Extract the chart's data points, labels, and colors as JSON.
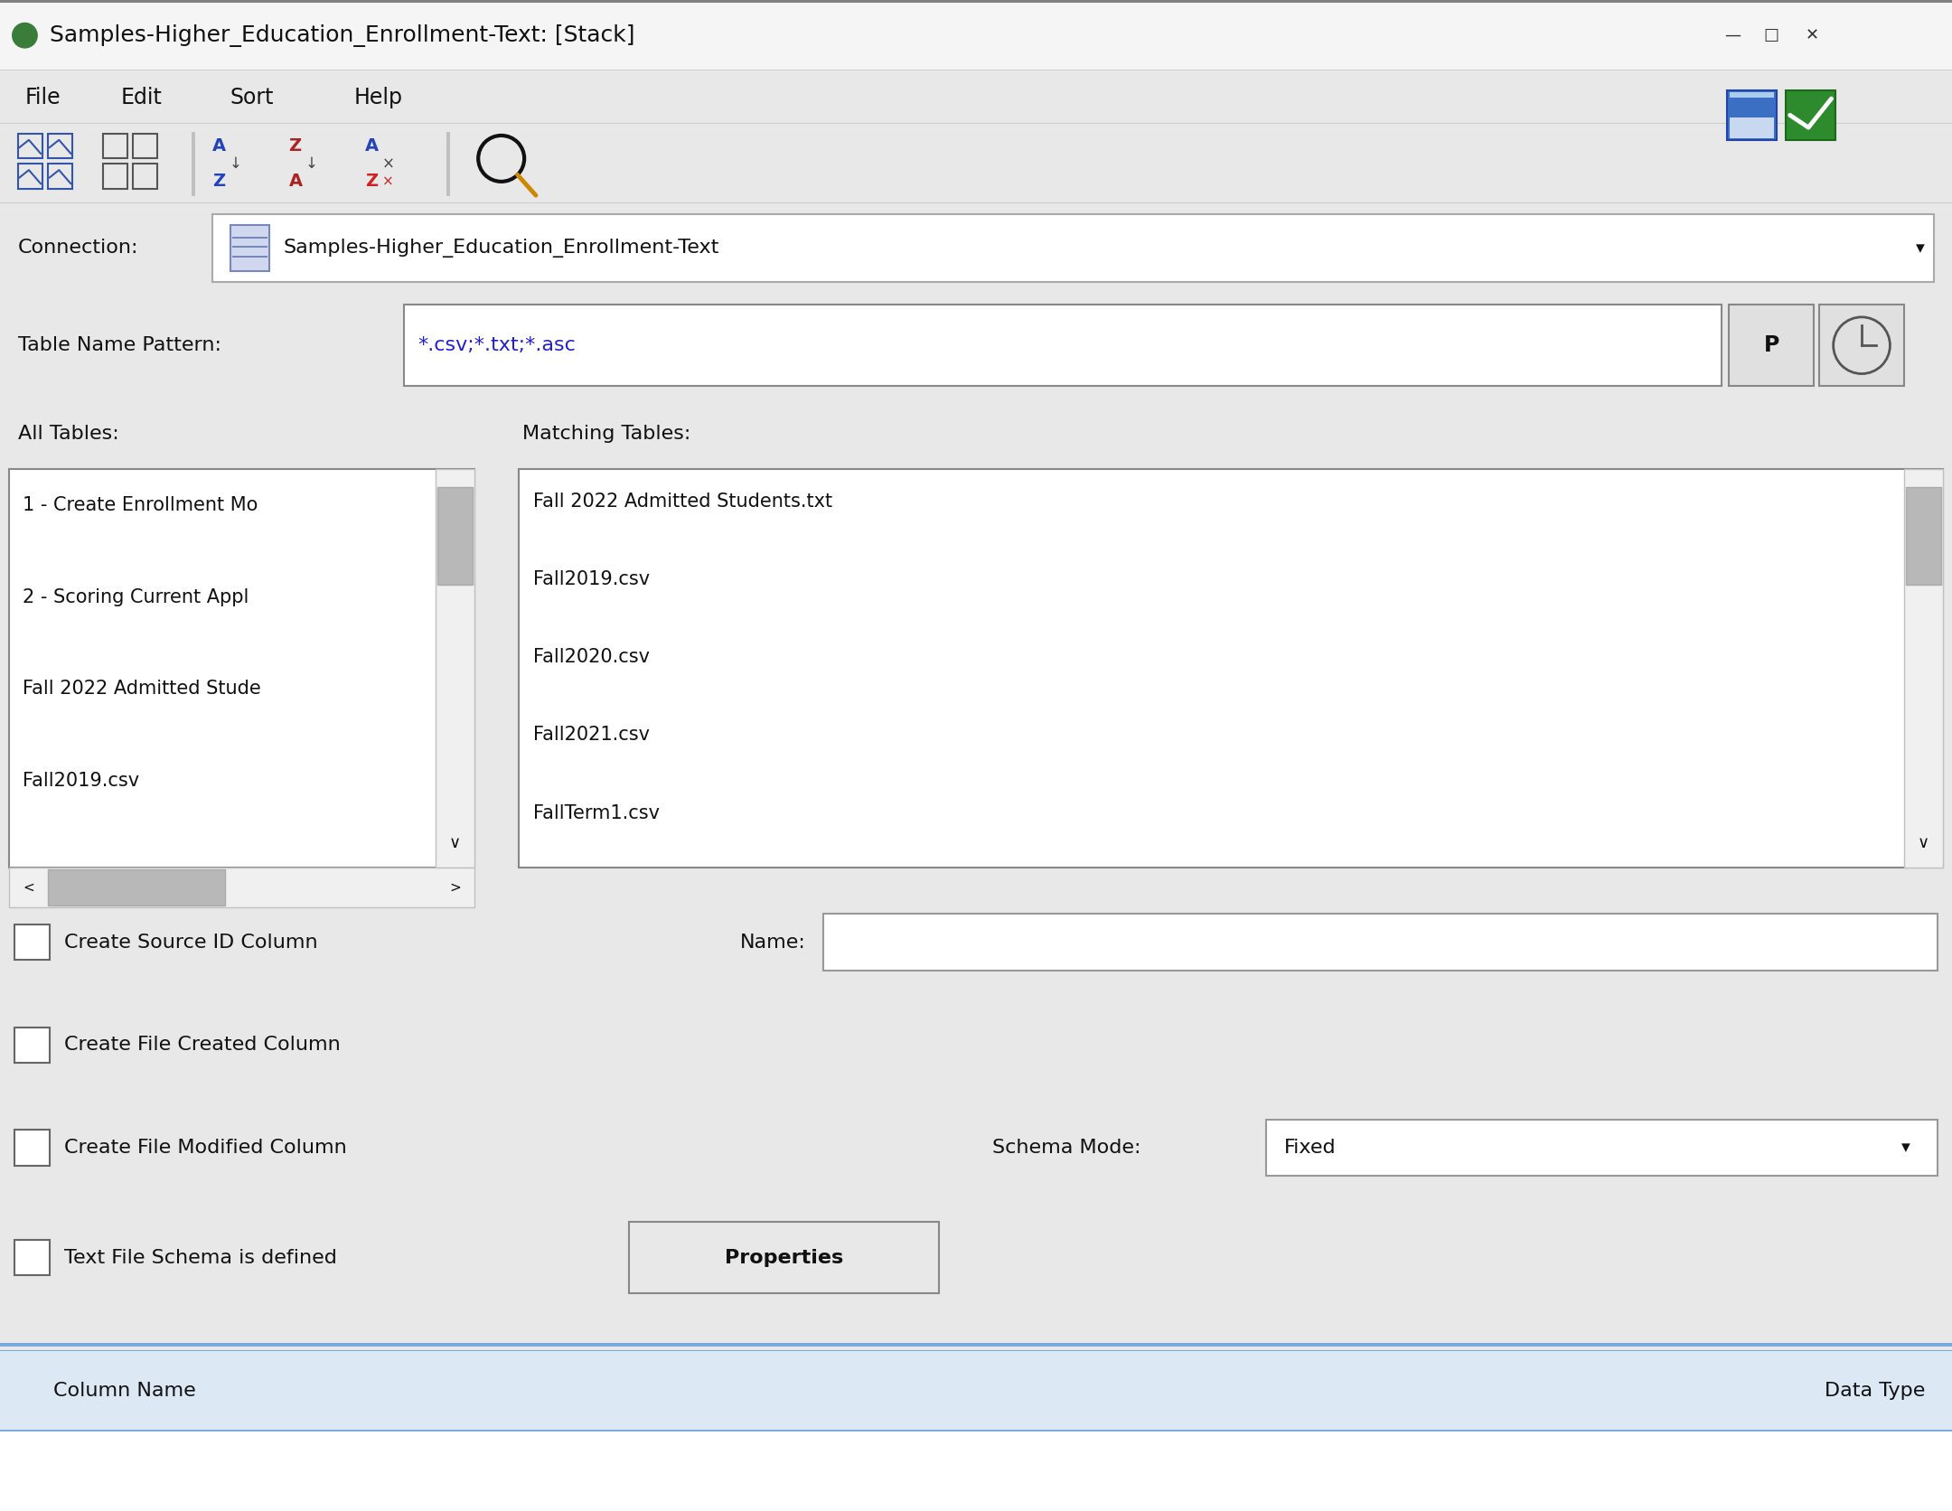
{
  "title": "Samples-Higher_Education_Enrollment-Text: [Stack]",
  "title_dot_color": "#3a7d3a",
  "menu_items": [
    "File",
    "Edit",
    "Sort",
    "Help"
  ],
  "connection_label": "Connection:",
  "connection_value": "Samples-Higher_Education_Enrollment-Text",
  "table_pattern_label": "Table Name Pattern:",
  "table_pattern_value": "*.csv;*.txt;*.asc",
  "table_pattern_color": "#2222cc",
  "all_tables_label": "All Tables:",
  "matching_tables_label": "Matching Tables:",
  "all_tables_items": [
    "1 - Create Enrollment Mo",
    "2 - Scoring Current Appl",
    "Fall 2022 Admitted Stude",
    "Fall2019.csv"
  ],
  "matching_tables_items": [
    "Fall 2022 Admitted Students.txt",
    "Fall2019.csv",
    "Fall2020.csv",
    "Fall2021.csv",
    "FallTerm1.csv"
  ],
  "checkbox_items": [
    "Create Source ID Column",
    "Create File Created Column",
    "Create File Modified Column",
    "Text File Schema is defined"
  ],
  "name_label": "Name:",
  "schema_mode_label": "Schema Mode:",
  "schema_mode_value": "Fixed",
  "properties_button": "Properties",
  "column_name_label": "Column Name",
  "data_type_label": "Data Type",
  "bg_color": "#e8e8e8",
  "white": "#ffffff",
  "border_color": "#c0c0c0",
  "dark_border": "#999999",
  "title_bar_bg": "#f5f5f5",
  "bottom_bar_bg": "#dde8f5",
  "bottom_bar_border": "#7aaadd",
  "scrollbar_bg": "#e0e0e0",
  "scrollbar_thumb": "#b8b8b8",
  "blue_btn_color": "#3a6fc4",
  "green_btn_color": "#2d8a2d",
  "icon_blue": "#3355aa",
  "icon_red": "#aa2222",
  "save_icon_bg": "#3a6fc4",
  "check_icon_bg": "#2d8a2d"
}
